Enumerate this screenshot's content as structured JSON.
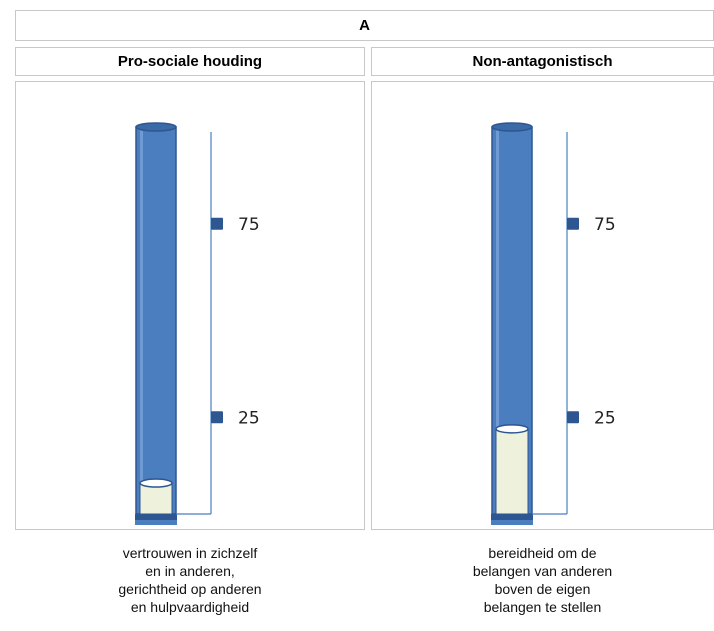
{
  "table": {
    "group_header": "A",
    "columns": [
      {
        "header": "Pro-sociale houding",
        "caption_lines": [
          "vertrouwen in zichzelf",
          "en in anderen,",
          "gerichtheid op anderen",
          "en hulpvaardigheid"
        ]
      },
      {
        "header": "Non-antagonistisch",
        "caption_lines": [
          "bereidheid om de",
          "belangen van anderen",
          "boven de eigen",
          "belangen te stellen"
        ]
      }
    ]
  },
  "chart_data": [
    {
      "type": "bar",
      "title": "Pro-sociale houding",
      "ylim": [
        0,
        100
      ],
      "ticks": [
        25,
        75
      ],
      "values": [
        8
      ],
      "colors": {
        "tube": "#4a7ebf",
        "tube_dark": "#2e5690",
        "fill": "#eef1dc",
        "axis": "#4a7ebf",
        "marker": "#2e5690"
      }
    },
    {
      "type": "bar",
      "title": "Non-antagonistisch",
      "ylim": [
        0,
        100
      ],
      "ticks": [
        25,
        75
      ],
      "values": [
        22
      ],
      "colors": {
        "tube": "#4a7ebf",
        "tube_dark": "#2e5690",
        "fill": "#eef1dc",
        "axis": "#4a7ebf",
        "marker": "#2e5690"
      }
    }
  ]
}
